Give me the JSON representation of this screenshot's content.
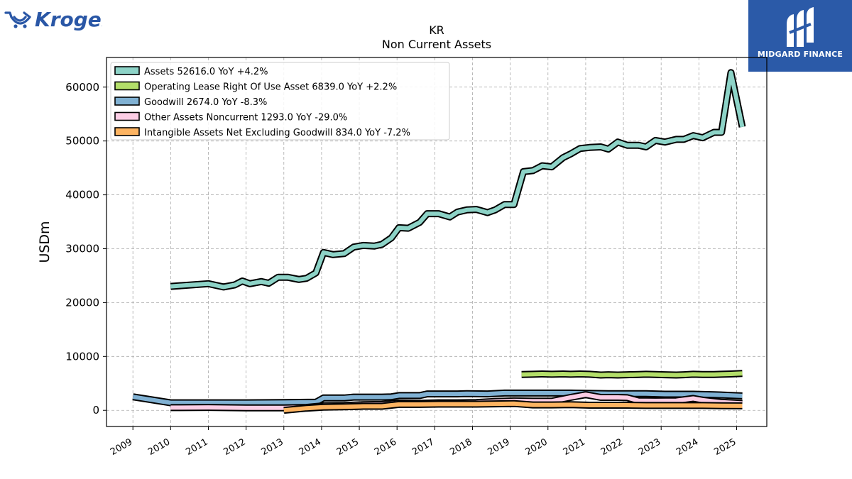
{
  "brand": {
    "left_logo": "Kroger",
    "right_logo": "MIDGARD FINANCE",
    "right_bg": "#2b5aa8"
  },
  "chart_data": {
    "type": "line",
    "title": "KR",
    "subtitle": "Non Current  Assets",
    "ylabel": "USDm",
    "xlabel": "",
    "ylim": [
      -3000,
      65500
    ],
    "xlim": [
      2008.3,
      2025.8
    ],
    "yticks": [
      0,
      10000,
      20000,
      30000,
      40000,
      50000,
      60000
    ],
    "xticks": [
      "2009",
      "2010",
      "2011",
      "2012",
      "2013",
      "2014",
      "2015",
      "2016",
      "2017",
      "2018",
      "2019",
      "2020",
      "2021",
      "2022",
      "2023",
      "2024",
      "2025"
    ],
    "grid": true,
    "legend_position": "top-left",
    "series": [
      {
        "name": "Assets",
        "legend": "Assets  52616.0 YoY +4.2%",
        "color": "#8dd3c7",
        "points": [
          [
            2010.0,
            23000
          ],
          [
            2011.0,
            23500
          ],
          [
            2011.4,
            22900
          ],
          [
            2011.7,
            23300
          ],
          [
            2011.9,
            24000
          ],
          [
            2012.1,
            23500
          ],
          [
            2012.4,
            23900
          ],
          [
            2012.6,
            23600
          ],
          [
            2012.85,
            24700
          ],
          [
            2013.1,
            24700
          ],
          [
            2013.4,
            24300
          ],
          [
            2013.6,
            24500
          ],
          [
            2013.85,
            25500
          ],
          [
            2014.05,
            29300
          ],
          [
            2014.3,
            28900
          ],
          [
            2014.6,
            29100
          ],
          [
            2014.85,
            30300
          ],
          [
            2015.1,
            30600
          ],
          [
            2015.4,
            30500
          ],
          [
            2015.6,
            30800
          ],
          [
            2015.85,
            32000
          ],
          [
            2016.05,
            33900
          ],
          [
            2016.3,
            33800
          ],
          [
            2016.6,
            34900
          ],
          [
            2016.8,
            36500
          ],
          [
            2017.1,
            36500
          ],
          [
            2017.4,
            35900
          ],
          [
            2017.6,
            36800
          ],
          [
            2017.85,
            37200
          ],
          [
            2018.1,
            37300
          ],
          [
            2018.4,
            36700
          ],
          [
            2018.6,
            37200
          ],
          [
            2018.85,
            38200
          ],
          [
            2019.1,
            38200
          ],
          [
            2019.35,
            44300
          ],
          [
            2019.6,
            44500
          ],
          [
            2019.85,
            45400
          ],
          [
            2020.1,
            45200
          ],
          [
            2020.4,
            46900
          ],
          [
            2020.6,
            47600
          ],
          [
            2020.85,
            48600
          ],
          [
            2021.1,
            48800
          ],
          [
            2021.4,
            48900
          ],
          [
            2021.6,
            48500
          ],
          [
            2021.85,
            49800
          ],
          [
            2022.1,
            49200
          ],
          [
            2022.4,
            49200
          ],
          [
            2022.6,
            48900
          ],
          [
            2022.85,
            50100
          ],
          [
            2023.1,
            49800
          ],
          [
            2023.4,
            50300
          ],
          [
            2023.6,
            50300
          ],
          [
            2023.85,
            51000
          ],
          [
            2024.1,
            50600
          ],
          [
            2024.4,
            51600
          ],
          [
            2024.6,
            51600
          ],
          [
            2024.85,
            62700
          ],
          [
            2025.15,
            52600
          ]
        ]
      },
      {
        "name": "Operating Lease Right Of Use Asset",
        "legend": "Operating Lease Right Of Use Asset  6839.0 YoY +2.2%",
        "color": "#b3de69",
        "points": [
          [
            2019.3,
            6650
          ],
          [
            2019.6,
            6700
          ],
          [
            2019.85,
            6750
          ],
          [
            2020.1,
            6700
          ],
          [
            2020.4,
            6750
          ],
          [
            2020.6,
            6700
          ],
          [
            2020.85,
            6750
          ],
          [
            2021.1,
            6700
          ],
          [
            2021.4,
            6550
          ],
          [
            2021.6,
            6600
          ],
          [
            2021.85,
            6550
          ],
          [
            2022.1,
            6600
          ],
          [
            2022.4,
            6650
          ],
          [
            2022.6,
            6700
          ],
          [
            2022.85,
            6650
          ],
          [
            2023.1,
            6600
          ],
          [
            2023.4,
            6550
          ],
          [
            2023.6,
            6600
          ],
          [
            2023.85,
            6700
          ],
          [
            2024.1,
            6650
          ],
          [
            2024.4,
            6650
          ],
          [
            2024.6,
            6700
          ],
          [
            2024.85,
            6750
          ],
          [
            2025.15,
            6839
          ]
        ]
      },
      {
        "name": "Goodwill",
        "legend": "Goodwill  2674.0 YoY -8.3%",
        "color": "#80b1d3",
        "points": [
          [
            2009.0,
            2500
          ],
          [
            2010.0,
            1400
          ],
          [
            2011.0,
            1400
          ],
          [
            2012.0,
            1400
          ],
          [
            2013.0,
            1450
          ],
          [
            2013.85,
            1500
          ],
          [
            2014.05,
            2300
          ],
          [
            2014.6,
            2300
          ],
          [
            2014.85,
            2450
          ],
          [
            2015.6,
            2450
          ],
          [
            2015.85,
            2500
          ],
          [
            2016.05,
            2750
          ],
          [
            2016.6,
            2750
          ],
          [
            2016.8,
            3050
          ],
          [
            2017.6,
            3050
          ],
          [
            2017.85,
            3100
          ],
          [
            2018.4,
            3050
          ],
          [
            2018.85,
            3200
          ],
          [
            2019.6,
            3200
          ],
          [
            2020.6,
            3200
          ],
          [
            2021.6,
            3100
          ],
          [
            2022.6,
            3100
          ],
          [
            2023.1,
            3000
          ],
          [
            2023.85,
            3000
          ],
          [
            2024.4,
            2900
          ],
          [
            2025.15,
            2674
          ]
        ]
      },
      {
        "name": "Other Assets Noncurrent",
        "legend": "Other Assets Noncurrent  1293.0 YoY -29.0%",
        "color": "#fccde5",
        "points": [
          [
            2010.0,
            500
          ],
          [
            2011.0,
            550
          ],
          [
            2012.0,
            450
          ],
          [
            2013.0,
            450
          ],
          [
            2013.6,
            550
          ],
          [
            2014.05,
            850
          ],
          [
            2014.6,
            900
          ],
          [
            2015.1,
            1050
          ],
          [
            2015.6,
            1100
          ],
          [
            2016.05,
            1350
          ],
          [
            2016.6,
            1300
          ],
          [
            2017.1,
            1400
          ],
          [
            2017.6,
            1400
          ],
          [
            2018.1,
            1450
          ],
          [
            2018.6,
            1650
          ],
          [
            2019.1,
            1750
          ],
          [
            2019.6,
            1700
          ],
          [
            2020.1,
            1700
          ],
          [
            2020.6,
            2400
          ],
          [
            2021.0,
            2900
          ],
          [
            2021.4,
            2400
          ],
          [
            2021.85,
            2400
          ],
          [
            2022.1,
            2350
          ],
          [
            2022.4,
            1800
          ],
          [
            2022.85,
            1750
          ],
          [
            2023.4,
            1800
          ],
          [
            2023.85,
            2200
          ],
          [
            2024.1,
            1900
          ],
          [
            2024.6,
            1500
          ],
          [
            2025.15,
            1293
          ]
        ]
      },
      {
        "name": "Intangible Assets Net Excluding Goodwill",
        "legend": "Intangible Assets Net Excluding Goodwill  834.0 YoY -7.2%",
        "color": "#fdb462",
        "points": [
          [
            2013.0,
            0
          ],
          [
            2013.6,
            400
          ],
          [
            2014.05,
            600
          ],
          [
            2014.6,
            650
          ],
          [
            2015.1,
            750
          ],
          [
            2015.6,
            750
          ],
          [
            2016.05,
            1100
          ],
          [
            2016.6,
            1100
          ],
          [
            2017.1,
            1150
          ],
          [
            2017.6,
            1150
          ],
          [
            2018.1,
            1150
          ],
          [
            2018.6,
            1200
          ],
          [
            2019.1,
            1250
          ],
          [
            2019.6,
            1000
          ],
          [
            2020.1,
            1000
          ],
          [
            2020.6,
            1050
          ],
          [
            2021.1,
            950
          ],
          [
            2021.6,
            950
          ],
          [
            2022.1,
            950
          ],
          [
            2022.6,
            900
          ],
          [
            2023.1,
            900
          ],
          [
            2023.6,
            900
          ],
          [
            2024.1,
            900
          ],
          [
            2024.6,
            850
          ],
          [
            2025.15,
            834
          ]
        ]
      }
    ]
  }
}
